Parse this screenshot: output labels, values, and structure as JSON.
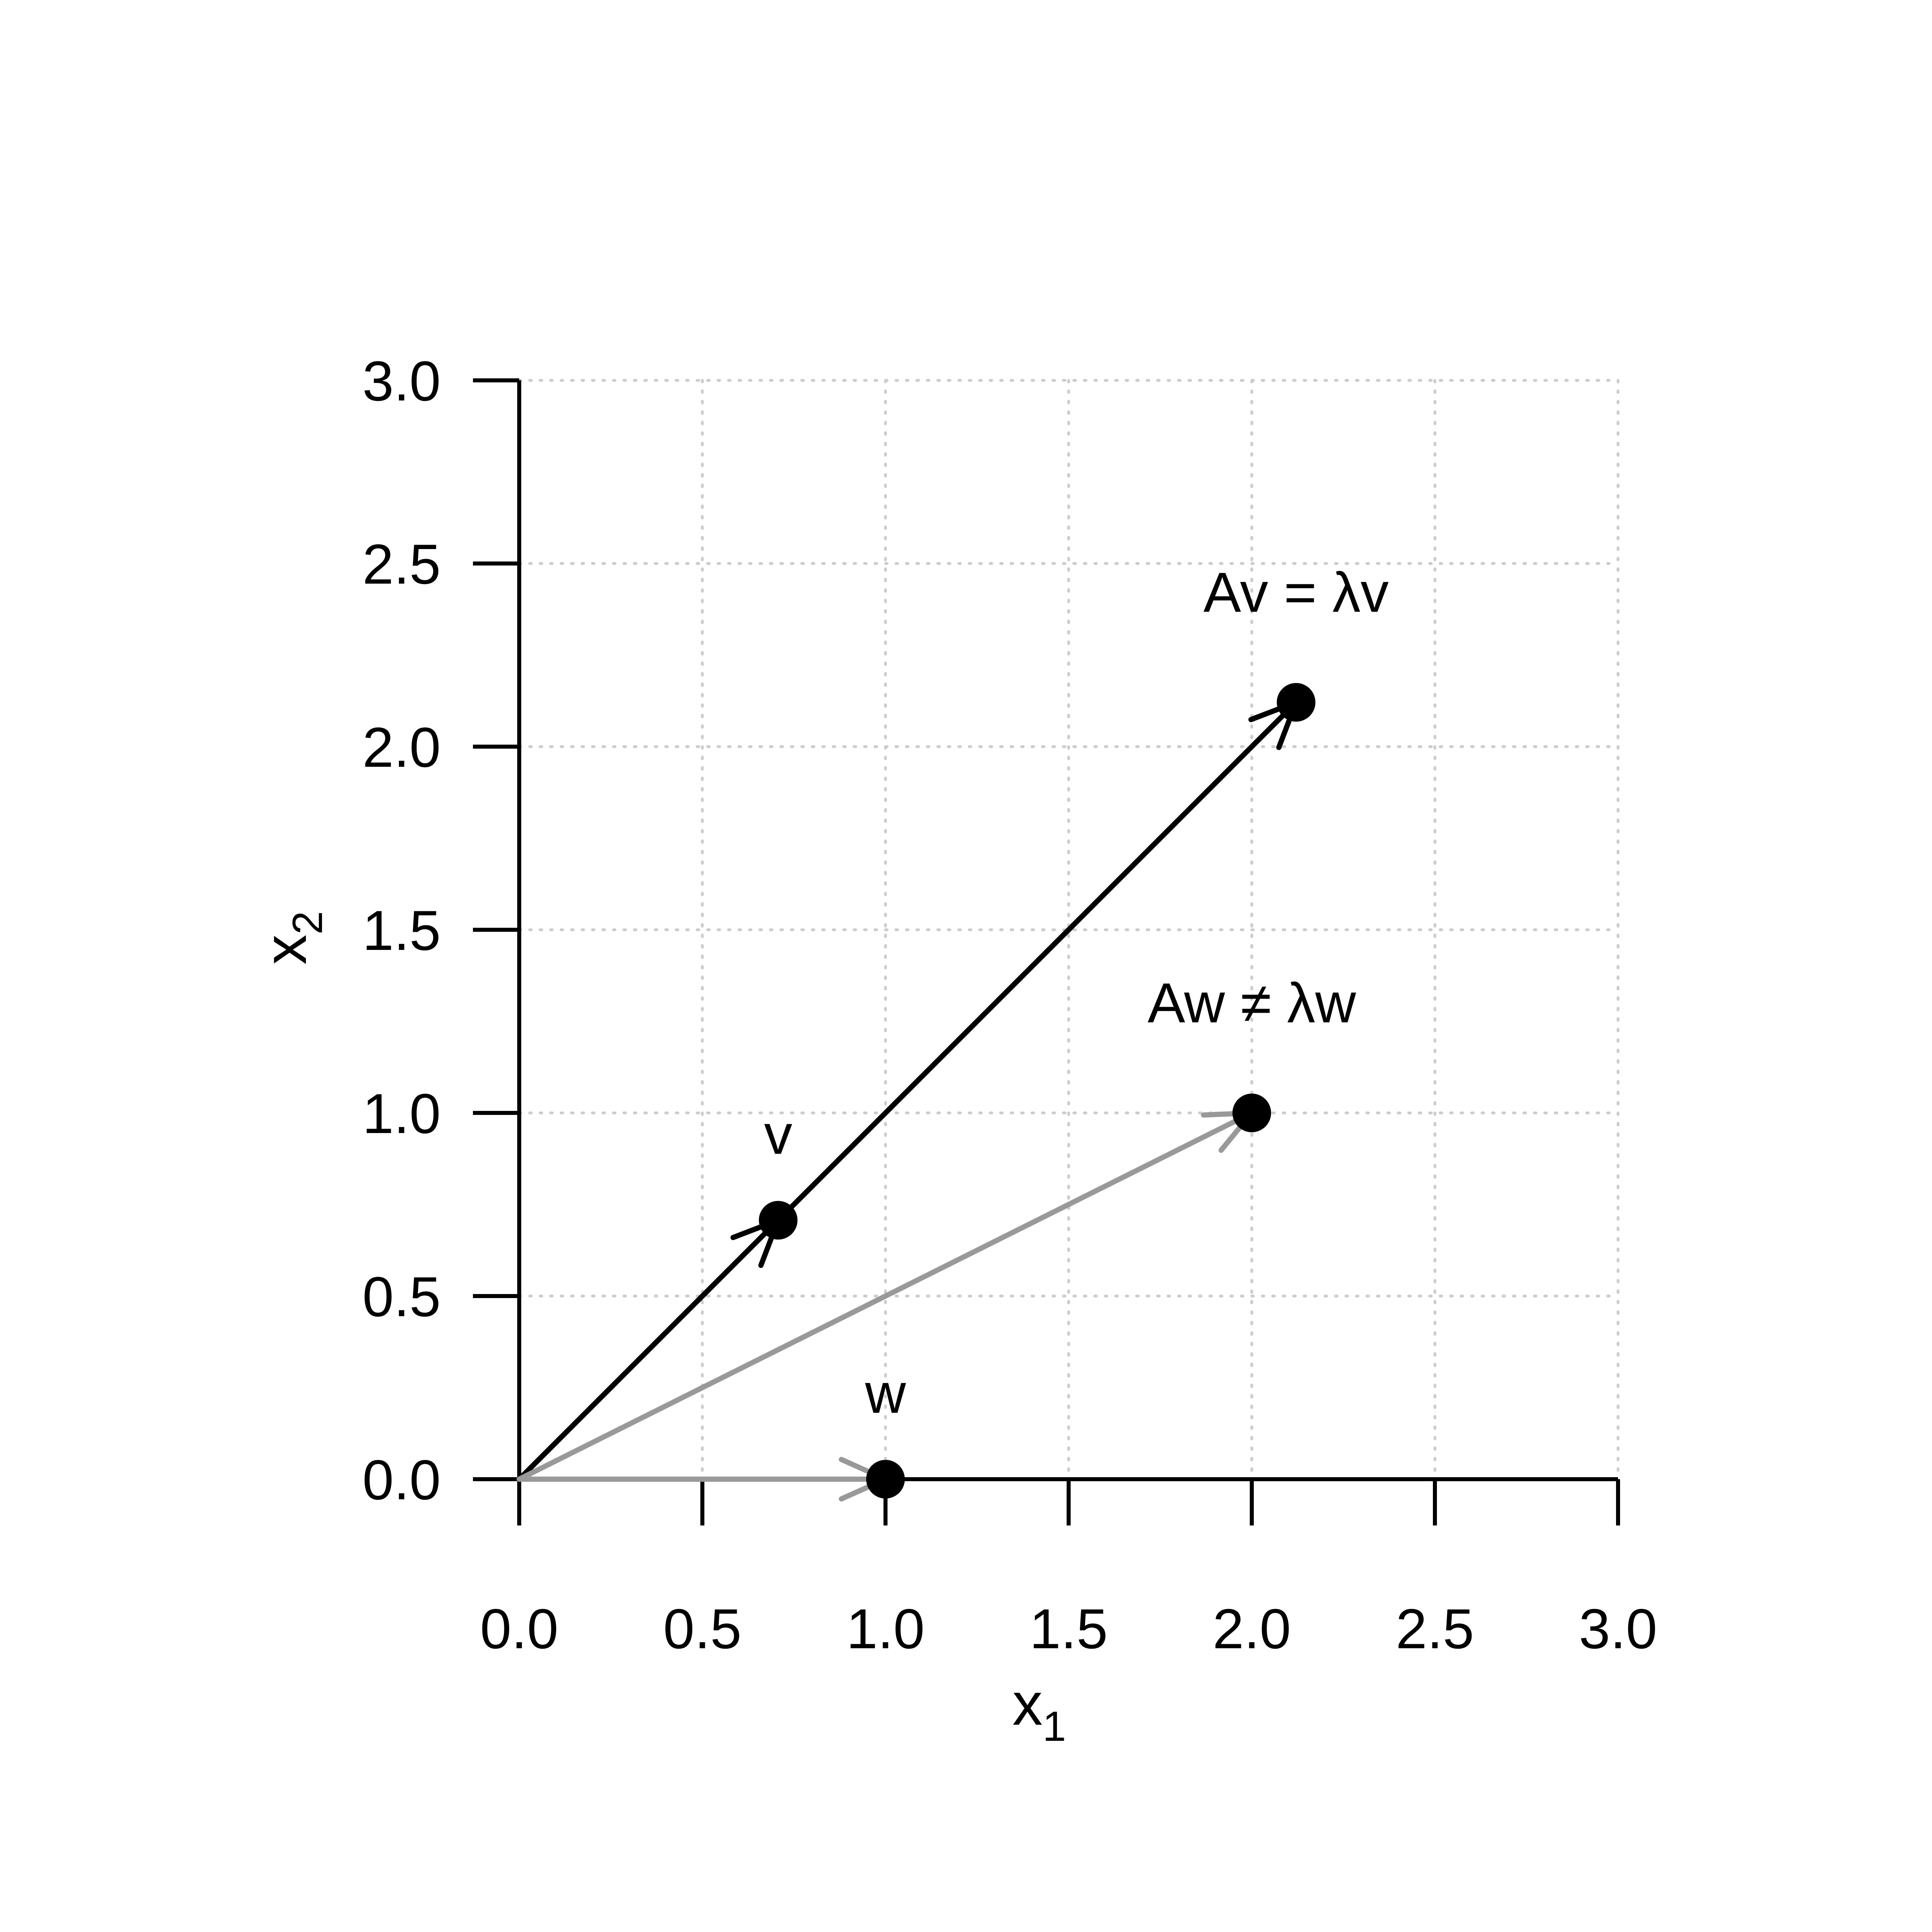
{
  "chart_data": {
    "type": "scatter",
    "title": "",
    "xlabel": "x",
    "xlabel_sub": "1",
    "ylabel": "x",
    "ylabel_sub": "2",
    "xlim": [
      0,
      3
    ],
    "ylim": [
      0,
      3
    ],
    "x_ticks": [
      "0.0",
      "0.5",
      "1.0",
      "1.5",
      "2.0",
      "2.5",
      "3.0"
    ],
    "y_ticks": [
      "0.0",
      "0.5",
      "1.0",
      "1.5",
      "2.0",
      "2.5",
      "3.0"
    ],
    "grid": true,
    "vectors": [
      {
        "from": [
          0,
          0
        ],
        "to": [
          0.707,
          0.707
        ],
        "color": "#000000",
        "end_point": "v"
      },
      {
        "from": [
          0.707,
          0.707
        ],
        "to": [
          2.121,
          2.121
        ],
        "color": "#000000",
        "end_point": "Av"
      },
      {
        "from": [
          0,
          0
        ],
        "to": [
          1,
          0
        ],
        "color": "#999999",
        "end_point": "w"
      },
      {
        "from": [
          0,
          0
        ],
        "to": [
          2,
          1
        ],
        "color": "#999999",
        "end_point": "Aw"
      }
    ],
    "points": [
      {
        "id": "v",
        "x": 0.707,
        "y": 0.707,
        "label": "v"
      },
      {
        "id": "Av",
        "x": 2.121,
        "y": 2.121,
        "label": "Av = λv"
      },
      {
        "id": "w",
        "x": 1.0,
        "y": 0.0,
        "label": "w"
      },
      {
        "id": "Aw",
        "x": 2.0,
        "y": 1.0,
        "label": "Aw ≠ λw"
      }
    ]
  }
}
